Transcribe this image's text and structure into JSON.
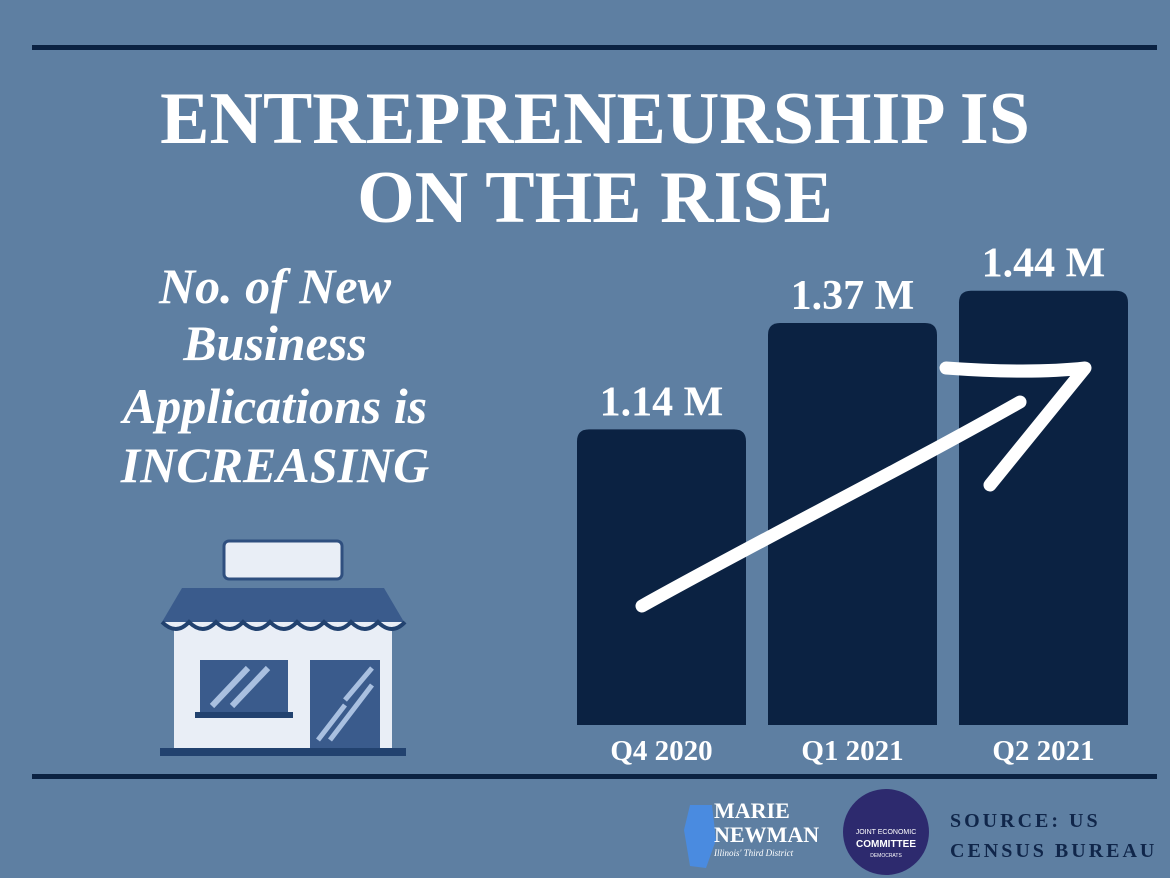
{
  "chart_data": {
    "type": "bar",
    "title": [
      "ENTREPRENEURSHIP IS",
      "ON THE RISE"
    ],
    "subtitle": [
      "No. of New",
      "Business",
      "Applications is",
      "INCREASING"
    ],
    "categories": [
      "Q4 2020",
      "Q1 2021",
      "Q2 2021"
    ],
    "values": [
      1.14,
      1.37,
      1.44
    ],
    "value_labels": [
      "1.14 M",
      "1.37 M",
      "1.44 M"
    ],
    "color": "#0b2242",
    "ylim": [
      0.5,
      1.5
    ],
    "source": [
      "SOURCE: US",
      "CENSUS BUREAU"
    ]
  },
  "logos": {
    "newman": [
      "MARIE",
      "NEWMAN",
      "Illinois' Third District"
    ],
    "committee": [
      "JOINT ECONOMIC",
      "COMMITTEE",
      "DEMOCRATS"
    ]
  }
}
